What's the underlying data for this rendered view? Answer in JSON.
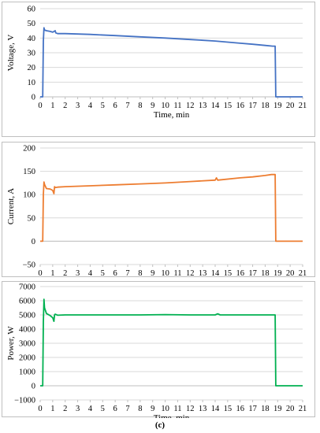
{
  "caption": "(c)",
  "chart_data": [
    {
      "type": "line",
      "xlabel": "Time, min",
      "ylabel": "Voltage, V",
      "xlim": [
        0,
        21
      ],
      "ylim": [
        0,
        60
      ],
      "xticks": [
        0,
        1,
        2,
        3,
        4,
        5,
        6,
        7,
        8,
        9,
        10,
        11,
        12,
        13,
        14,
        15,
        16,
        17,
        18,
        19,
        20,
        21
      ],
      "yticks": [
        0,
        10,
        20,
        30,
        40,
        50,
        60
      ],
      "grid": "horizontal",
      "color": "#4472c4",
      "x": [
        0,
        0.2,
        0.25,
        0.3,
        0.35,
        0.5,
        0.8,
        1.0,
        1.2,
        1.25,
        1.4,
        2,
        4,
        6,
        8,
        10,
        12,
        14,
        16,
        17,
        18,
        18.6,
        18.8,
        18.85,
        19,
        20,
        21
      ],
      "y": [
        0,
        0,
        38,
        47,
        45.5,
        45,
        44.5,
        44,
        45,
        43.5,
        43,
        43,
        42.5,
        41.7,
        40.8,
        40,
        39,
        38,
        36.5,
        35.8,
        35,
        34.5,
        34.5,
        0,
        0,
        0,
        0
      ]
    },
    {
      "type": "line",
      "xlabel": "Time, min",
      "ylabel": "Current, A",
      "xlim": [
        0,
        21
      ],
      "ylim": [
        -50,
        200
      ],
      "xticks": [
        0,
        1,
        2,
        3,
        4,
        5,
        6,
        7,
        8,
        9,
        10,
        11,
        12,
        13,
        14,
        15,
        16,
        17,
        18,
        19,
        20,
        21
      ],
      "yticks": [
        -50,
        0,
        50,
        100,
        150,
        200
      ],
      "grid": "horizontal",
      "color": "#ed7d31",
      "x": [
        0,
        0.2,
        0.25,
        0.3,
        0.35,
        0.5,
        0.8,
        1.0,
        1.1,
        1.15,
        1.2,
        1.4,
        2,
        4,
        6,
        8,
        10,
        12,
        14,
        14.1,
        14.2,
        16,
        17,
        18,
        18.5,
        18.8,
        18.85,
        19,
        21
      ],
      "y": [
        0,
        0,
        100,
        127,
        122,
        113,
        112,
        109,
        102,
        117,
        115,
        116,
        117,
        119,
        121,
        123,
        125,
        128,
        131,
        136,
        131,
        136,
        138,
        141,
        143,
        143,
        0,
        0,
        0
      ]
    },
    {
      "type": "line",
      "xlabel": "Time, min",
      "ylabel": "Power, W",
      "xlim": [
        0,
        21
      ],
      "ylim": [
        -1000,
        7000
      ],
      "xticks": [
        0,
        1,
        2,
        3,
        4,
        5,
        6,
        7,
        8,
        9,
        10,
        11,
        12,
        13,
        14,
        15,
        16,
        17,
        18,
        19,
        20,
        21
      ],
      "yticks": [
        -1000,
        0,
        1000,
        2000,
        3000,
        4000,
        5000,
        6000,
        7000
      ],
      "grid": "horizontal",
      "color": "#00b050",
      "x": [
        0,
        0.2,
        0.25,
        0.3,
        0.35,
        0.5,
        0.8,
        1.0,
        1.1,
        1.15,
        1.2,
        1.4,
        2,
        4,
        6,
        8,
        10,
        12,
        14,
        14.2,
        14.4,
        16,
        18,
        18.8,
        18.85,
        19,
        21
      ],
      "y": [
        0,
        0,
        4500,
        6100,
        5500,
        5100,
        4950,
        4800,
        4550,
        5000,
        5050,
        4980,
        5000,
        5000,
        5000,
        5000,
        5020,
        5000,
        5000,
        5080,
        5000,
        5000,
        5000,
        5000,
        0,
        0,
        0
      ]
    }
  ]
}
